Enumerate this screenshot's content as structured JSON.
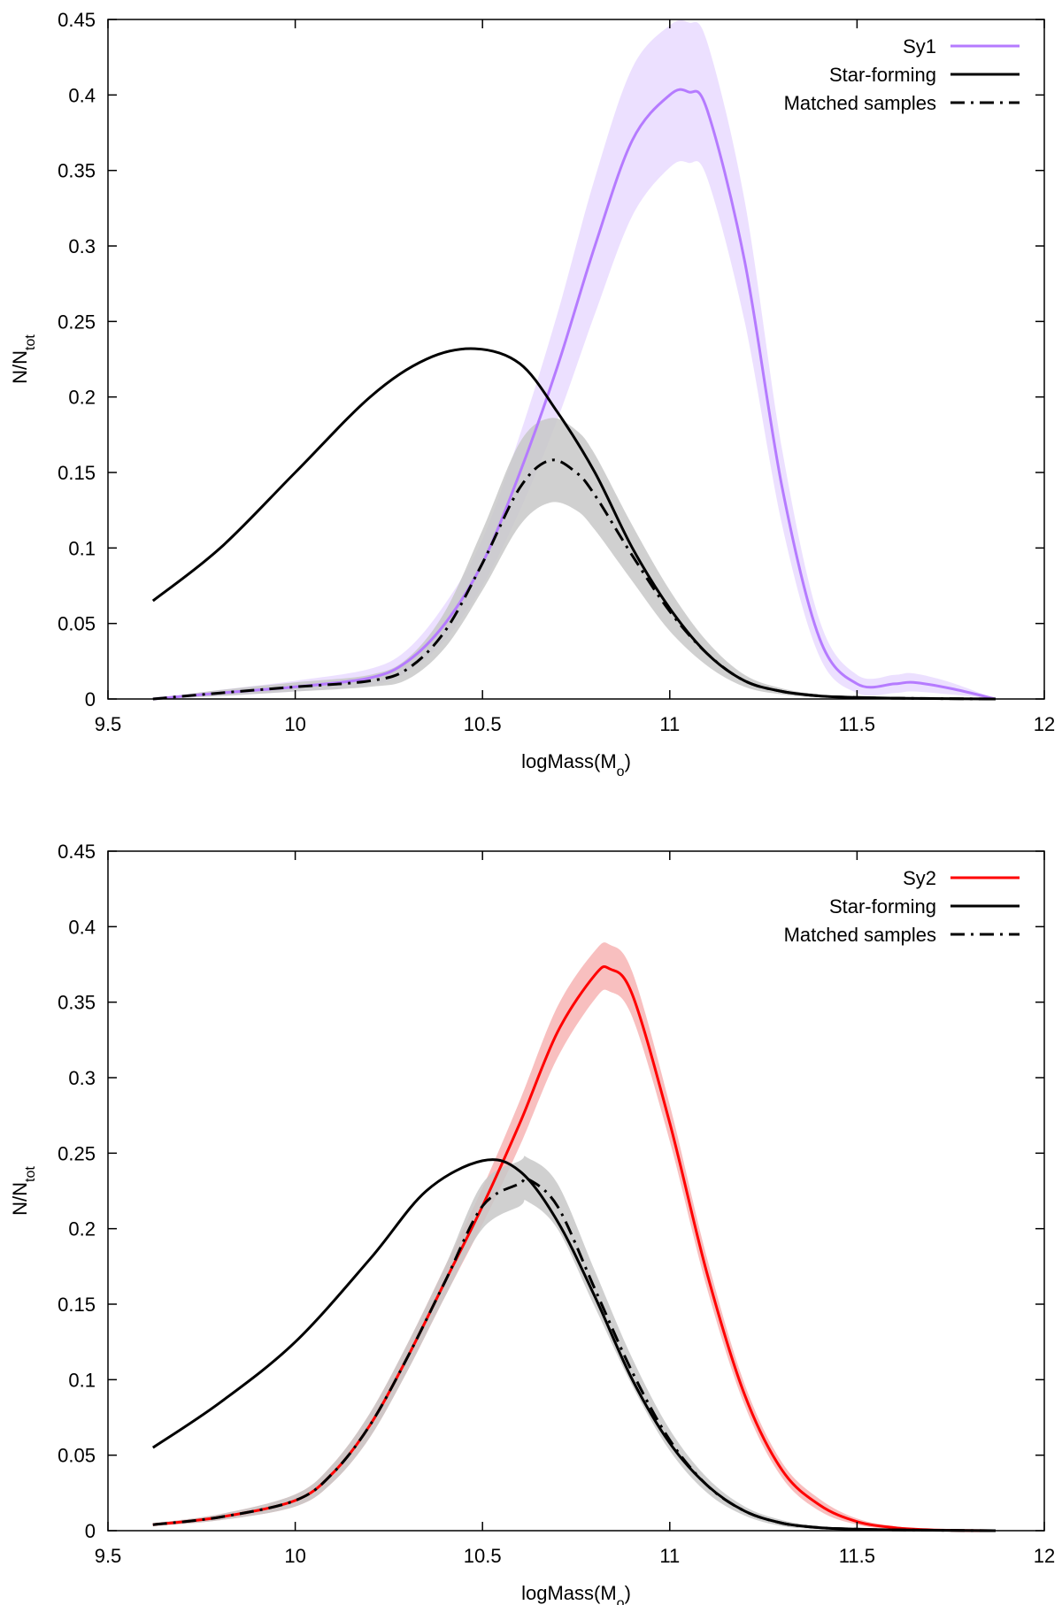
{
  "chart_data": [
    {
      "type": "line",
      "ylabel_main": "N/N",
      "ylabel_sub": "tot",
      "xlabel_main": "logMass(M",
      "xlabel_sub": "o",
      "xlabel_end": ")",
      "xlim": [
        9.5,
        12
      ],
      "ylim": [
        0,
        0.45
      ],
      "xticks": [
        9.5,
        10,
        10.5,
        11,
        11.5,
        12
      ],
      "xtick_labels": [
        "9.5",
        "10",
        "10.5",
        "11",
        "11.5",
        "12"
      ],
      "yticks": [
        0,
        0.05,
        0.1,
        0.15,
        0.2,
        0.25,
        0.3,
        0.35,
        0.4,
        0.45
      ],
      "ytick_labels": [
        "0",
        "0.05",
        "0.1",
        "0.15",
        "0.2",
        "0.25",
        "0.3",
        "0.35",
        "0.4",
        "0.45"
      ],
      "legend_position": "top-right",
      "series": [
        {
          "name": "Sy1",
          "style": "solid",
          "color": "#b57bff",
          "band_color": "#e9dbff",
          "x": [
            9.62,
            9.8,
            10.0,
            10.2,
            10.3,
            10.4,
            10.5,
            10.6,
            10.7,
            10.8,
            10.9,
            11.0,
            11.05,
            11.1,
            11.2,
            11.3,
            11.4,
            11.5,
            11.6,
            11.65,
            11.75,
            11.87
          ],
          "y": [
            0.0,
            0.004,
            0.008,
            0.014,
            0.025,
            0.05,
            0.09,
            0.15,
            0.22,
            0.3,
            0.37,
            0.4,
            0.402,
            0.39,
            0.29,
            0.14,
            0.04,
            0.01,
            0.01,
            0.011,
            0.007,
            0.0
          ],
          "y_low": [
            0.0,
            0.002,
            0.005,
            0.009,
            0.018,
            0.039,
            0.075,
            0.125,
            0.185,
            0.255,
            0.32,
            0.352,
            0.355,
            0.345,
            0.25,
            0.115,
            0.028,
            0.004,
            0.004,
            0.005,
            0.003,
            0.0
          ],
          "y_high": [
            0.0,
            0.006,
            0.012,
            0.02,
            0.033,
            0.063,
            0.106,
            0.175,
            0.255,
            0.345,
            0.418,
            0.446,
            0.448,
            0.435,
            0.33,
            0.165,
            0.052,
            0.016,
            0.016,
            0.017,
            0.011,
            0.0
          ]
        },
        {
          "name": "Star-forming",
          "style": "solid",
          "color": "#000000",
          "x": [
            9.62,
            9.8,
            10.0,
            10.2,
            10.35,
            10.48,
            10.6,
            10.7,
            10.8,
            10.9,
            11.0,
            11.1,
            11.2,
            11.3,
            11.4,
            11.5,
            11.6,
            11.7,
            11.87
          ],
          "y": [
            0.065,
            0.1,
            0.15,
            0.2,
            0.225,
            0.232,
            0.222,
            0.19,
            0.15,
            0.1,
            0.06,
            0.03,
            0.012,
            0.005,
            0.002,
            0.001,
            0.0005,
            0.0003,
            0.0
          ]
        },
        {
          "name": "Matched samples",
          "style": "dash-dot",
          "color": "#000000",
          "band_color": "#c8c8c8",
          "x": [
            9.62,
            9.8,
            10.0,
            10.2,
            10.3,
            10.4,
            10.5,
            10.6,
            10.68,
            10.75,
            10.8,
            10.9,
            11.0,
            11.1,
            11.2,
            11.3,
            11.4,
            11.5,
            11.6,
            11.87
          ],
          "y": [
            0.0,
            0.004,
            0.008,
            0.012,
            0.02,
            0.045,
            0.09,
            0.14,
            0.158,
            0.15,
            0.135,
            0.095,
            0.058,
            0.03,
            0.012,
            0.005,
            0.002,
            0.001,
            0.0005,
            0.0
          ],
          "y_low": [
            0.0,
            0.002,
            0.005,
            0.008,
            0.013,
            0.034,
            0.072,
            0.115,
            0.13,
            0.125,
            0.112,
            0.078,
            0.045,
            0.022,
            0.008,
            0.003,
            0.001,
            0.0,
            0.0,
            0.0
          ],
          "y_high": [
            0.0,
            0.006,
            0.011,
            0.016,
            0.027,
            0.058,
            0.112,
            0.17,
            0.186,
            0.178,
            0.162,
            0.115,
            0.072,
            0.038,
            0.016,
            0.007,
            0.003,
            0.002,
            0.001,
            0.0
          ]
        }
      ]
    },
    {
      "type": "line",
      "ylabel_main": "N/N",
      "ylabel_sub": "tot",
      "xlabel_main": "logMass(M",
      "xlabel_sub": "o",
      "xlabel_end": ")",
      "xlim": [
        9.5,
        12
      ],
      "ylim": [
        0,
        0.45
      ],
      "xticks": [
        9.5,
        10,
        10.5,
        11,
        11.5,
        12
      ],
      "xtick_labels": [
        "9.5",
        "10",
        "10.5",
        "11",
        "11.5",
        "12"
      ],
      "yticks": [
        0,
        0.05,
        0.1,
        0.15,
        0.2,
        0.25,
        0.3,
        0.35,
        0.4,
        0.45
      ],
      "ytick_labels": [
        "0",
        "0.05",
        "0.1",
        "0.15",
        "0.2",
        "0.25",
        "0.3",
        "0.35",
        "0.4",
        "0.45"
      ],
      "legend_position": "top-right",
      "series": [
        {
          "name": "Sy2",
          "style": "solid",
          "color": "#ff0000",
          "band_color": "#f7b4b4",
          "x": [
            9.62,
            9.8,
            10.0,
            10.1,
            10.2,
            10.3,
            10.4,
            10.5,
            10.6,
            10.7,
            10.8,
            10.84,
            10.9,
            11.0,
            11.1,
            11.2,
            11.3,
            11.4,
            11.5,
            11.6,
            11.7,
            11.87
          ],
          "y": [
            0.004,
            0.009,
            0.02,
            0.038,
            0.07,
            0.115,
            0.165,
            0.215,
            0.27,
            0.33,
            0.368,
            0.372,
            0.355,
            0.27,
            0.17,
            0.09,
            0.04,
            0.017,
            0.006,
            0.002,
            0.0005,
            0.0
          ],
          "y_low": [
            0.003,
            0.007,
            0.016,
            0.032,
            0.062,
            0.106,
            0.155,
            0.203,
            0.255,
            0.313,
            0.352,
            0.357,
            0.34,
            0.258,
            0.16,
            0.083,
            0.035,
            0.013,
            0.004,
            0.001,
            0.0,
            0.0
          ],
          "y_high": [
            0.005,
            0.011,
            0.024,
            0.044,
            0.078,
            0.124,
            0.175,
            0.227,
            0.285,
            0.347,
            0.384,
            0.388,
            0.37,
            0.282,
            0.18,
            0.097,
            0.045,
            0.021,
            0.008,
            0.003,
            0.001,
            0.0
          ]
        },
        {
          "name": "Star-forming",
          "style": "solid",
          "color": "#000000",
          "x": [
            9.62,
            9.8,
            10.0,
            10.2,
            10.35,
            10.5,
            10.6,
            10.7,
            10.8,
            10.9,
            11.0,
            11.1,
            11.2,
            11.3,
            11.4,
            11.5,
            11.6,
            11.7,
            11.87
          ],
          "y": [
            0.055,
            0.085,
            0.125,
            0.18,
            0.225,
            0.245,
            0.238,
            0.205,
            0.155,
            0.1,
            0.058,
            0.03,
            0.013,
            0.005,
            0.002,
            0.001,
            0.0005,
            0.0003,
            0.0
          ]
        },
        {
          "name": "Matched samples",
          "style": "dash-dot",
          "color": "#000000",
          "band_color": "#c8c8c8",
          "x": [
            9.62,
            9.8,
            10.0,
            10.1,
            10.2,
            10.3,
            10.4,
            10.5,
            10.6,
            10.62,
            10.7,
            10.8,
            10.9,
            11.0,
            11.1,
            11.2,
            11.3,
            11.4,
            11.5,
            11.6,
            11.87
          ],
          "y": [
            0.004,
            0.009,
            0.02,
            0.038,
            0.07,
            0.115,
            0.165,
            0.215,
            0.23,
            0.233,
            0.215,
            0.16,
            0.105,
            0.06,
            0.03,
            0.013,
            0.005,
            0.002,
            0.001,
            0.0005,
            0.0
          ],
          "y_low": [
            0.003,
            0.007,
            0.016,
            0.032,
            0.062,
            0.106,
            0.155,
            0.2,
            0.215,
            0.218,
            0.2,
            0.148,
            0.096,
            0.053,
            0.025,
            0.01,
            0.003,
            0.001,
            0.0,
            0.0,
            0.0
          ],
          "y_high": [
            0.005,
            0.011,
            0.024,
            0.044,
            0.078,
            0.124,
            0.175,
            0.23,
            0.245,
            0.247,
            0.23,
            0.172,
            0.114,
            0.067,
            0.035,
            0.016,
            0.007,
            0.003,
            0.002,
            0.001,
            0.0
          ]
        }
      ]
    }
  ]
}
